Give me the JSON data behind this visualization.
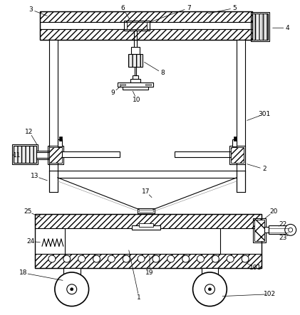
{
  "fig_width": 4.21,
  "fig_height": 4.43,
  "dpi": 100,
  "bg_color": "#ffffff",
  "lw": 0.8
}
